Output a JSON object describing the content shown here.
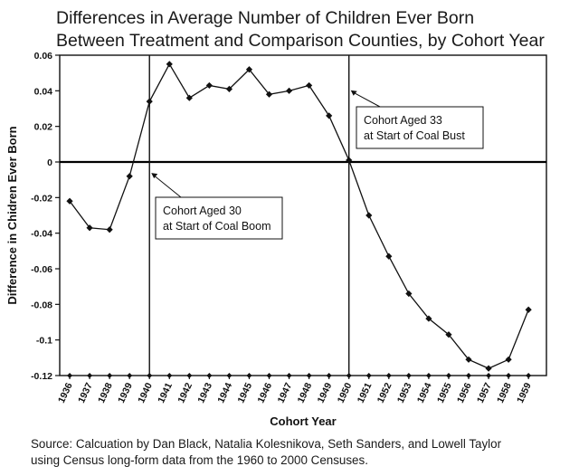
{
  "chart_data": {
    "type": "line",
    "title_lines": [
      "Differences in Average Number of Children Ever Born",
      "Between Treatment and Comparison Counties, by Cohort Year"
    ],
    "xlabel": "Cohort Year",
    "ylabel": "Difference in Chidren Ever Born",
    "x": [
      1936,
      1937,
      1938,
      1939,
      1940,
      1941,
      1942,
      1943,
      1944,
      1945,
      1946,
      1947,
      1948,
      1949,
      1950,
      1951,
      1952,
      1953,
      1954,
      1955,
      1956,
      1957,
      1958,
      1959
    ],
    "x_tick_labels": [
      "1936",
      "1937",
      "1938",
      "1939",
      "1940",
      "1941",
      "1942",
      "1943",
      "1944",
      "1945",
      "1946",
      "1947",
      "1948",
      "1949",
      "1950",
      "1951",
      "1952",
      "1953",
      "1954",
      "1955",
      "1956",
      "1957",
      "1958",
      "1959"
    ],
    "series": [
      {
        "name": "Difference",
        "values": [
          -0.022,
          -0.037,
          -0.038,
          -0.008,
          0.034,
          0.055,
          0.036,
          0.043,
          0.041,
          0.052,
          0.038,
          0.04,
          0.043,
          0.026,
          0.001,
          -0.03,
          -0.053,
          -0.074,
          -0.088,
          -0.097,
          -0.111,
          -0.116,
          -0.111,
          -0.083
        ]
      }
    ],
    "baseline_series": {
      "name": "Baseline markers",
      "value": -0.12
    },
    "ylim": [
      -0.12,
      0.06
    ],
    "y_ticks": [
      0.06,
      0.04,
      0.02,
      0,
      -0.02,
      -0.04,
      -0.06,
      -0.08,
      -0.1,
      -0.12
    ],
    "y_tick_labels": [
      "0.06",
      "0.04",
      "0.02",
      "0",
      "-0.02",
      "-0.04",
      "-0.06",
      "-0.08",
      "-0.1",
      "-0.12"
    ],
    "reference_lines": [
      {
        "x": 1940
      },
      {
        "x": 1950
      }
    ],
    "annotations": [
      {
        "lines": [
          "Cohort Aged 30",
          "at Start of Coal Boom"
        ],
        "points_to_x": 1940
      },
      {
        "lines": [
          "Cohort Aged 33",
          "at Start of Coal Bust"
        ],
        "points_to_x": 1950
      }
    ],
    "grid": false
  },
  "source_note": [
    "Source: Calcuation by Dan Black, Natalia Kolesnikova, Seth Sanders, and Lowell Taylor",
    "using Census long-form data from the 1960 to 2000 Censuses."
  ]
}
